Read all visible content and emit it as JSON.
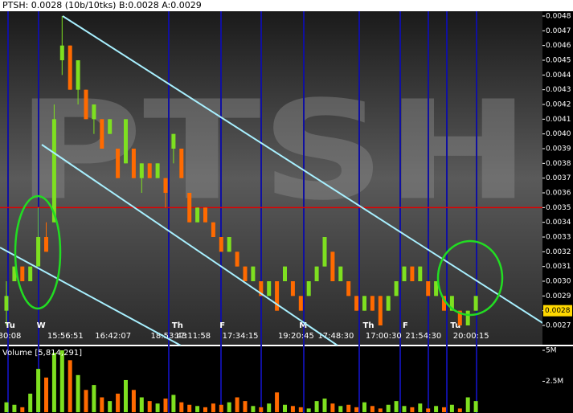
{
  "chart_data": {
    "type": "ohlc",
    "title": "PTSH: 0.0028 (10b/10tks) B:0.0028 A:0.0029",
    "watermark": "PTSH",
    "categories": [
      "30:08",
      null,
      null,
      null,
      null,
      null,
      null,
      "15:56:51",
      null,
      null,
      null,
      null,
      null,
      "16:42:07",
      null,
      null,
      null,
      null,
      null,
      null,
      "18:53:43",
      null,
      null,
      "17:11:58",
      null,
      null,
      null,
      null,
      null,
      "17:34:15",
      null,
      null,
      null,
      null,
      null,
      null,
      "19:20:45",
      null,
      null,
      null,
      null,
      "17:48:30",
      null,
      null,
      null,
      null,
      null,
      "17:00:30",
      null,
      null,
      null,
      null,
      "21:54:30",
      null,
      null,
      null,
      null,
      null,
      "20:00:15",
      null
    ],
    "day_markers": [
      "Tu",
      null,
      null,
      null,
      "W",
      null,
      null,
      null,
      null,
      null,
      null,
      null,
      null,
      null,
      null,
      null,
      null,
      null,
      null,
      null,
      null,
      "Th",
      null,
      null,
      null,
      null,
      null,
      "F",
      null,
      null,
      null,
      null,
      null,
      null,
      null,
      null,
      null,
      "M",
      null,
      null,
      null,
      null,
      null,
      null,
      null,
      "Th",
      null,
      null,
      null,
      null,
      "F",
      null,
      null,
      null,
      null,
      null,
      "Tu",
      null,
      null,
      null
    ],
    "open": [
      0.0028,
      0.003,
      0.0031,
      0.003,
      0.0031,
      0.0033,
      0.0034,
      0.0045,
      0.0046,
      0.0043,
      0.0043,
      0.0041,
      0.0041,
      0.004,
      0.0039,
      0.0038,
      0.0039,
      0.0037,
      0.0038,
      0.0037,
      0.0037,
      0.0039,
      0.0039,
      0.0036,
      0.0034,
      0.0035,
      0.0034,
      0.0033,
      0.0032,
      0.0032,
      0.0031,
      0.003,
      0.003,
      0.0029,
      0.003,
      0.003,
      0.003,
      0.0029,
      0.0029,
      0.003,
      0.0031,
      0.0032,
      0.003,
      0.003,
      0.0029,
      0.0028,
      0.0029,
      0.0029,
      0.0028,
      0.0029,
      0.003,
      0.0031,
      0.003,
      0.003,
      0.0029,
      0.0029,
      0.0028,
      0.0028,
      0.0027,
      0.0028
    ],
    "high": [
      0.003,
      0.0031,
      0.0031,
      0.0031,
      0.0035,
      0.0034,
      0.0042,
      0.0048,
      0.0046,
      0.0045,
      0.0043,
      0.0042,
      0.0041,
      0.0041,
      0.0039,
      0.0041,
      0.0039,
      0.0038,
      0.0038,
      0.0038,
      0.0037,
      0.004,
      0.0039,
      0.0036,
      0.0035,
      0.0035,
      0.0034,
      0.0033,
      0.0033,
      0.0032,
      0.0031,
      0.0031,
      0.003,
      0.003,
      0.003,
      0.0031,
      0.003,
      0.0029,
      0.003,
      0.0031,
      0.0033,
      0.0032,
      0.0031,
      0.003,
      0.0029,
      0.0029,
      0.0029,
      0.0029,
      0.0029,
      0.003,
      0.0031,
      0.0031,
      0.0031,
      0.003,
      0.003,
      0.0029,
      0.0029,
      0.0028,
      0.0028,
      0.0029
    ],
    "low": [
      0.0027,
      0.003,
      0.003,
      0.003,
      0.0031,
      0.0032,
      0.0034,
      0.0044,
      0.0043,
      0.0042,
      0.0041,
      0.004,
      0.0039,
      0.004,
      0.0037,
      0.0038,
      0.0037,
      0.0036,
      0.0037,
      0.0037,
      0.0035,
      0.0038,
      0.0037,
      0.0034,
      0.0034,
      0.0034,
      0.0033,
      0.0032,
      0.0032,
      0.0031,
      0.003,
      0.003,
      0.0029,
      0.0029,
      0.0028,
      0.003,
      0.0029,
      0.0028,
      0.0029,
      0.003,
      0.0031,
      0.003,
      0.003,
      0.0029,
      0.0028,
      0.0028,
      0.0028,
      0.0027,
      0.0028,
      0.0029,
      0.003,
      0.003,
      0.003,
      0.0029,
      0.0029,
      0.0028,
      0.0028,
      0.0027,
      0.0027,
      0.0028
    ],
    "close": [
      0.0029,
      0.0031,
      0.003,
      0.0031,
      0.0033,
      0.0032,
      0.0041,
      0.0046,
      0.0043,
      0.0045,
      0.0041,
      0.0042,
      0.0039,
      0.0041,
      0.0037,
      0.0041,
      0.0037,
      0.0038,
      0.0037,
      0.0038,
      0.0036,
      0.004,
      0.0037,
      0.0034,
      0.0035,
      0.0034,
      0.0033,
      0.0032,
      0.0033,
      0.0031,
      0.003,
      0.0031,
      0.0029,
      0.003,
      0.0028,
      0.0031,
      0.0029,
      0.0028,
      0.003,
      0.0031,
      0.0033,
      0.003,
      0.0031,
      0.0029,
      0.0028,
      0.0029,
      0.0028,
      0.0027,
      0.0029,
      0.003,
      0.0031,
      0.003,
      0.0031,
      0.0029,
      0.003,
      0.0028,
      0.0029,
      0.0027,
      0.0028,
      0.0029
    ],
    "up_color": "#7ee020",
    "down_color": "#ff6a00",
    "ylim": [
      0.0027,
      0.0048
    ],
    "yticks": [
      0.0027,
      0.0028,
      0.0029,
      {
        "value": 0.003,
        "label": "0.0030"
      },
      0.0031,
      0.0032,
      0.0033,
      0.0034,
      0.0035,
      0.0036,
      0.0037,
      0.0038,
      0.0039,
      {
        "value": 0.004,
        "label": "0.0040"
      },
      0.0041,
      0.0042,
      0.0043,
      0.0044,
      0.0045,
      0.0046,
      0.0047,
      0.0048
    ],
    "hline": 0.0035,
    "hline_color": "#e00000",
    "last_price": 0.0028,
    "volume_title": "Volume [5,814,291]",
    "volume": [
      800000,
      600000,
      400000,
      1500000,
      3500000,
      2800000,
      4800000,
      5000000,
      4200000,
      3000000,
      1800000,
      2200000,
      1200000,
      900000,
      1500000,
      2600000,
      1800000,
      1200000,
      900000,
      700000,
      1100000,
      1400000,
      800000,
      600000,
      500000,
      400000,
      700000,
      600000,
      800000,
      1200000,
      900000,
      500000,
      400000,
      700000,
      1600000,
      600000,
      500000,
      400000,
      300000,
      900000,
      1100000,
      700000,
      500000,
      600000,
      400000,
      800000,
      500000,
      300000,
      600000,
      900000,
      500000,
      400000,
      700000,
      300000,
      500000,
      400000,
      600000,
      300000,
      1200000,
      900000
    ],
    "volume_ylim": [
      0,
      5000000
    ],
    "volume_yticks": [
      {
        "value": 5000000,
        "label": "5M"
      },
      {
        "value": 2500000,
        "label": "2.5M"
      }
    ]
  }
}
